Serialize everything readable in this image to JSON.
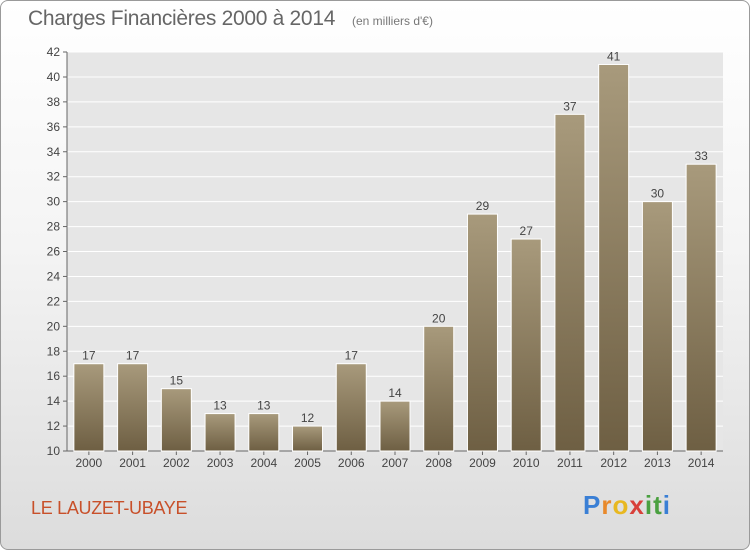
{
  "title": "Charges Financières 2000 à 2014",
  "subtitle": "(en milliers d'€)",
  "location": "LE LAUZET-UBAYE",
  "brand": {
    "letters": [
      "P",
      "r",
      "o",
      "x",
      "i",
      "t",
      "i"
    ],
    "colors": [
      "#3a7fd5",
      "#e8892b",
      "#e8b820",
      "#d8403a",
      "#4aa040",
      "#4aa040",
      "#3a7fd5"
    ]
  },
  "colors": {
    "bar_top": "#a89a7c",
    "bar_bottom": "#6e5f43",
    "axis": "#666666",
    "grid": "#ffffff"
  },
  "chart_data": {
    "type": "bar",
    "categories": [
      "2000",
      "2001",
      "2002",
      "2003",
      "2004",
      "2005",
      "2006",
      "2007",
      "2008",
      "2009",
      "2010",
      "2011",
      "2012",
      "2013",
      "2014"
    ],
    "values": [
      17,
      17,
      15,
      13,
      13,
      12,
      17,
      14,
      20,
      29,
      27,
      37,
      41,
      30,
      33
    ],
    "ylim": [
      10,
      42
    ],
    "yticks": [
      10,
      12,
      14,
      16,
      18,
      20,
      22,
      24,
      26,
      28,
      30,
      32,
      34,
      36,
      38,
      40,
      42
    ],
    "grid": true,
    "data_labels": true
  }
}
